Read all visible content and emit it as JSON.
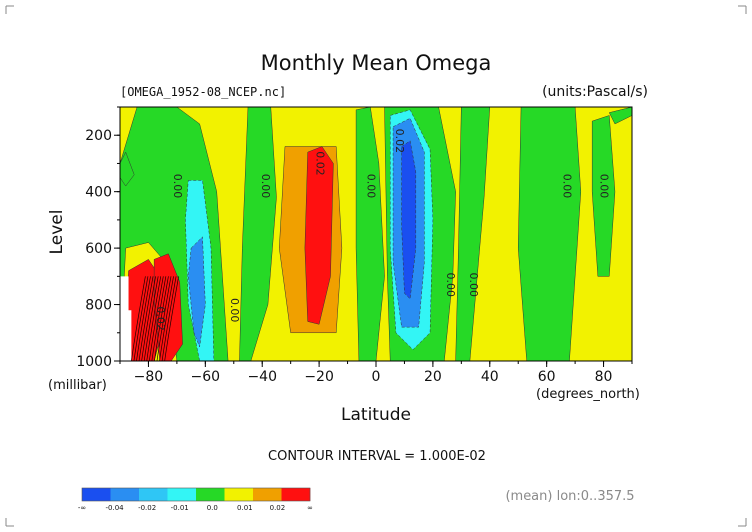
{
  "chart_data": {
    "type": "heatmap",
    "title": "Monthly Mean Omega",
    "file_label": "[OMEGA_1952-08_NCEP.nc]",
    "units_label": "(units:Pascal/s)",
    "xlabel": "Latitude",
    "ylabel": "Level",
    "y_unit_label": "(millibar)",
    "x_unit_label": "(degrees_north)",
    "xlim": [
      -90,
      90
    ],
    "ylim": [
      1000,
      100
    ],
    "x_ticks": [
      -80,
      -60,
      -40,
      -20,
      0,
      20,
      40,
      60,
      80
    ],
    "y_ticks": [
      200,
      400,
      600,
      800,
      1000
    ],
    "contour_interval": "CONTOUR INTERVAL = 1.000E-02",
    "footer_note": "(mean) lon:0..357.5",
    "colorbar": {
      "labels": [
        "-∞",
        "-0.04",
        "-0.02",
        "-0.01",
        "0.0",
        "0.01",
        "0.02",
        "∞"
      ],
      "colors": [
        "#1a4ff0",
        "#2a8ef2",
        "#2fc6f5",
        "#33f5f5",
        "#26d926",
        "#f2f200",
        "#f0a000",
        "#ff1010"
      ]
    },
    "contour_labels": [
      {
        "text": "0.00",
        "lat": -71,
        "level": 380
      },
      {
        "text": "0.00",
        "lat": -40,
        "level": 380
      },
      {
        "text": "0.02",
        "lat": -21,
        "level": 300
      },
      {
        "text": "0.00",
        "lat": -3,
        "level": 380
      },
      {
        "text": "0.02",
        "lat": 7,
        "level": 220
      },
      {
        "text": "0.00",
        "lat": 25,
        "level": 730
      },
      {
        "text": "0.00",
        "lat": 33,
        "level": 730
      },
      {
        "text": "0.00",
        "lat": 66,
        "level": 380
      },
      {
        "text": "0.00",
        "lat": 79,
        "level": 380
      },
      {
        "text": "0.00",
        "lat": -51,
        "level": 820
      },
      {
        "text": "0.02",
        "lat": -77,
        "level": 850
      }
    ],
    "regions": [
      {
        "level": "0.01",
        "poly": [
          [
            -90,
            100
          ],
          [
            90,
            100
          ],
          [
            90,
            1000
          ],
          [
            -90,
            1000
          ]
        ]
      },
      {
        "level": "0.0",
        "poly": [
          [
            -90,
            300
          ],
          [
            -84,
            100
          ],
          [
            -70,
            100
          ],
          [
            -62,
            160
          ],
          [
            -56,
            400
          ],
          [
            -52,
            1000
          ],
          [
            -90,
            1000
          ]
        ]
      },
      {
        "level": "0.0",
        "poly": [
          [
            -45,
            100
          ],
          [
            -37,
            100
          ],
          [
            -35,
            420
          ],
          [
            -38,
            800
          ],
          [
            -44,
            1000
          ],
          [
            -48,
            1000
          ],
          [
            -47,
            600
          ]
        ]
      },
      {
        "level": "0.0",
        "poly": [
          [
            -7,
            110
          ],
          [
            -2,
            100
          ],
          [
            1,
            300
          ],
          [
            3,
            700
          ],
          [
            0,
            1000
          ],
          [
            -6,
            1000
          ],
          [
            -7,
            600
          ]
        ]
      },
      {
        "level": "0.0",
        "poly": [
          [
            3,
            100
          ],
          [
            22,
            100
          ],
          [
            28,
            400
          ],
          [
            27,
            700
          ],
          [
            24,
            1000
          ],
          [
            5,
            1000
          ],
          [
            4,
            700
          ]
        ]
      },
      {
        "level": "0.0",
        "poly": [
          [
            30,
            100
          ],
          [
            40,
            100
          ],
          [
            38,
            420
          ],
          [
            33,
            1000
          ],
          [
            28,
            1000
          ],
          [
            29,
            600
          ]
        ]
      },
      {
        "level": "0.0",
        "poly": [
          [
            51,
            100
          ],
          [
            70,
            100
          ],
          [
            72,
            400
          ],
          [
            68,
            1000
          ],
          [
            53,
            1000
          ],
          [
            50,
            600
          ]
        ]
      },
      {
        "level": "0.0",
        "poly": [
          [
            76,
            150
          ],
          [
            82,
            130
          ],
          [
            84,
            400
          ],
          [
            82,
            700
          ],
          [
            78,
            700
          ],
          [
            76,
            400
          ]
        ]
      },
      {
        "level": "0.0",
        "poly": [
          [
            -90,
            300
          ],
          [
            -88,
            260
          ],
          [
            -85,
            340
          ],
          [
            -88,
            380
          ],
          [
            -90,
            350
          ]
        ]
      },
      {
        "level": "0.0",
        "poly": [
          [
            82,
            120
          ],
          [
            90,
            100
          ],
          [
            90,
            130
          ],
          [
            84,
            160
          ]
        ]
      },
      {
        "level": "0.01",
        "poly": [
          [
            -88,
            600
          ],
          [
            -80,
            580
          ],
          [
            -74,
            650
          ],
          [
            -70,
            1000
          ],
          [
            -90,
            1000
          ]
        ]
      },
      {
        "level": "-0.01",
        "poly": [
          [
            -66,
            360
          ],
          [
            -61,
            360
          ],
          [
            -58,
            600
          ],
          [
            -57,
            1000
          ],
          [
            -62,
            1000
          ],
          [
            -66,
            800
          ],
          [
            -67,
            500
          ]
        ]
      },
      {
        "level": "-0.02",
        "poly": [
          [
            -65,
            600
          ],
          [
            -61,
            560
          ],
          [
            -60,
            800
          ],
          [
            -62,
            950
          ],
          [
            -64,
            900
          ],
          [
            -66,
            700
          ]
        ]
      },
      {
        "level": "0.02",
        "poly": [
          [
            -32,
            240
          ],
          [
            -14,
            240
          ],
          [
            -12,
            600
          ],
          [
            -14,
            900
          ],
          [
            -30,
            900
          ],
          [
            -34,
            600
          ]
        ]
      },
      {
        "level": "0.02",
        "poly": [
          [
            -24,
            260
          ],
          [
            -19,
            240
          ],
          [
            -15,
            300
          ],
          [
            -16,
            700
          ],
          [
            -20,
            870
          ],
          [
            -24,
            860
          ],
          [
            -25,
            600
          ]
        ]
      },
      {
        "level": "0.02",
        "poly": [
          [
            -87,
            680
          ],
          [
            -80,
            640
          ],
          [
            -76,
            700
          ],
          [
            -74,
            850
          ],
          [
            -78,
            1000
          ],
          [
            -88,
            1000
          ]
        ]
      },
      {
        "level": "0.02",
        "poly": [
          [
            -78,
            640
          ],
          [
            -73,
            620
          ],
          [
            -69,
            720
          ],
          [
            -68,
            940
          ],
          [
            -72,
            1000
          ],
          [
            -76,
            1000
          ],
          [
            -78,
            780
          ]
        ]
      },
      {
        "level": "-0.01",
        "poly": [
          [
            5,
            130
          ],
          [
            12,
            110
          ],
          [
            19,
            250
          ],
          [
            20,
            500
          ],
          [
            19,
            900
          ],
          [
            13,
            960
          ],
          [
            7,
            900
          ],
          [
            5,
            600
          ]
        ]
      },
      {
        "level": "-0.02",
        "poly": [
          [
            6,
            170
          ],
          [
            12,
            140
          ],
          [
            17,
            260
          ],
          [
            17,
            650
          ],
          [
            15,
            880
          ],
          [
            9,
            880
          ],
          [
            6,
            650
          ]
        ]
      },
      {
        "level": "-0.04",
        "poly": [
          [
            9,
            240
          ],
          [
            12,
            220
          ],
          [
            14,
            330
          ],
          [
            14,
            600
          ],
          [
            12,
            780
          ],
          [
            10,
            760
          ],
          [
            9,
            520
          ]
        ]
      }
    ],
    "white_patch": {
      "poly": [
        [
          -90,
          700
        ],
        [
          -87,
          700
        ],
        [
          -87,
          820
        ],
        [
          -86,
          820
        ],
        [
          -86,
          1000
        ],
        [
          -90,
          1000
        ]
      ]
    }
  }
}
